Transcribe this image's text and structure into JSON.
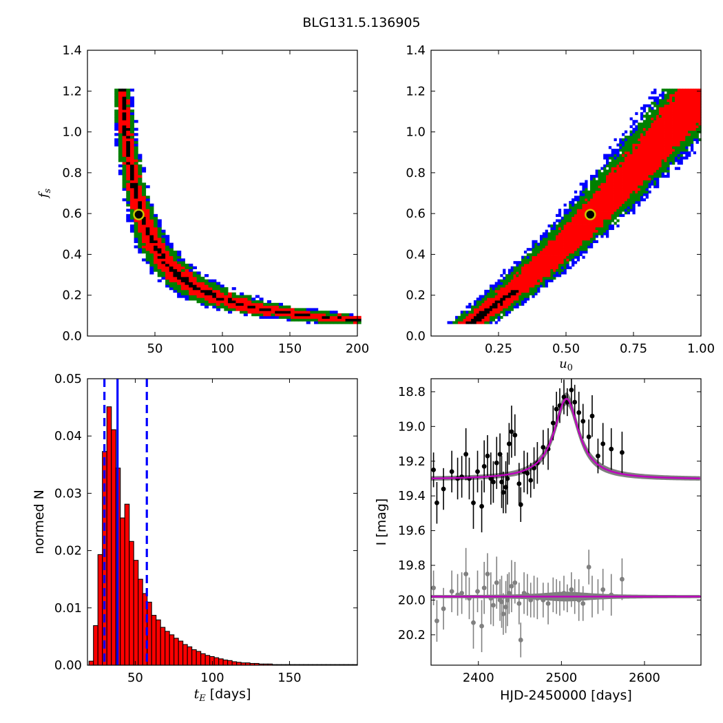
{
  "figure": {
    "title": "BLG131.5.136905"
  },
  "chart_data": [
    {
      "id": "fs_vs_tE",
      "type": "heatmap",
      "xlabel": "",
      "ylabel": "f_s",
      "xlim": [
        0,
        200
      ],
      "ylim": [
        0,
        1.4
      ],
      "xticks": [
        "50",
        "100",
        "150",
        "200"
      ],
      "xtick_values": [
        50,
        100,
        150,
        200
      ],
      "yticks": [
        "0.0",
        "0.2",
        "0.4",
        "0.6",
        "0.8",
        "1.0",
        "1.2",
        "1.4"
      ],
      "ytick_values": [
        0,
        0.2,
        0.4,
        0.6,
        0.8,
        1.0,
        1.2,
        1.4
      ],
      "levels": [
        {
          "name": "outer",
          "color": "#0000ff"
        },
        {
          "name": "mid",
          "color": "#008000"
        },
        {
          "name": "inner",
          "color": "#ff0000"
        },
        {
          "name": "core",
          "color": "#000000"
        }
      ],
      "best_fit": {
        "x": 38,
        "y": 0.595
      },
      "ridge": [
        [
          20,
          1.2
        ],
        [
          25,
          0.95
        ],
        [
          30,
          0.75
        ],
        [
          38,
          0.595
        ],
        [
          45,
          0.45
        ],
        [
          55,
          0.32
        ],
        [
          70,
          0.21
        ],
        [
          90,
          0.135
        ],
        [
          115,
          0.09
        ],
        [
          150,
          0.068
        ],
        [
          195,
          0.062
        ]
      ]
    },
    {
      "id": "fs_vs_u0",
      "type": "heatmap",
      "xlabel": "u_0",
      "ylabel": "",
      "xlim": [
        0,
        1.0
      ],
      "ylim": [
        0,
        1.4
      ],
      "xticks": [
        "0.25",
        "0.50",
        "0.75",
        "1.00"
      ],
      "xtick_values": [
        0.25,
        0.5,
        0.75,
        1.0
      ],
      "yticks": [
        "0.0",
        "0.2",
        "0.4",
        "0.6",
        "0.8",
        "1.0",
        "1.2",
        "1.4"
      ],
      "ytick_values": [
        0,
        0.2,
        0.4,
        0.6,
        0.8,
        1.0,
        1.2,
        1.4
      ],
      "best_fit": {
        "x": 0.59,
        "y": 0.595
      },
      "ridge": [
        [
          0.08,
          0.06
        ],
        [
          0.15,
          0.12
        ],
        [
          0.25,
          0.21
        ],
        [
          0.35,
          0.31
        ],
        [
          0.45,
          0.42
        ],
        [
          0.55,
          0.55
        ],
        [
          0.62,
          0.65
        ],
        [
          0.7,
          0.79
        ],
        [
          0.78,
          0.93
        ],
        [
          0.85,
          1.07
        ],
        [
          0.92,
          1.2
        ]
      ]
    },
    {
      "id": "tE_histogram",
      "type": "bar",
      "xlabel": "t_E [days]",
      "ylabel": "normed N",
      "xlim": [
        19,
        194
      ],
      "ylim": [
        0,
        0.05
      ],
      "xticks": [
        "50",
        "100",
        "150"
      ],
      "xtick_values": [
        50,
        100,
        150
      ],
      "yticks": [
        "0.00",
        "0.01",
        "0.02",
        "0.03",
        "0.04",
        "0.05"
      ],
      "ytick_values": [
        0,
        0.01,
        0.02,
        0.03,
        0.04,
        0.05
      ],
      "bin_width": 2.9,
      "bin_start": 20,
      "values": [
        0.0007,
        0.0069,
        0.0193,
        0.0373,
        0.0451,
        0.0411,
        0.0344,
        0.0257,
        0.0281,
        0.0216,
        0.0183,
        0.015,
        0.0125,
        0.011,
        0.0087,
        0.0079,
        0.0066,
        0.0059,
        0.0053,
        0.0047,
        0.0042,
        0.0036,
        0.0032,
        0.0027,
        0.0024,
        0.002,
        0.0017,
        0.0015,
        0.0013,
        0.0011,
        0.0009,
        0.0008,
        0.0006,
        0.0005,
        0.0004,
        0.0004,
        0.0003,
        0.0003,
        0.0002,
        0.0002,
        0.0002,
        0.0001,
        0.0001,
        0.0001,
        0.0001,
        0.0001,
        0.0001,
        0.0001,
        0.0001,
        0.0001,
        0.0001,
        0.0001,
        0.0001,
        0.0001,
        0.0001,
        0.0001,
        0.0001,
        0.0001,
        0.0001,
        0.0001
      ],
      "bar_color": "#ff0000",
      "vlines": [
        {
          "x": 30.0,
          "style": "dashed",
          "color": "#0000ff"
        },
        {
          "x": 38.5,
          "style": "solid",
          "color": "#0000ff"
        },
        {
          "x": 57.5,
          "style": "dashed",
          "color": "#0000ff"
        }
      ]
    },
    {
      "id": "light_curve",
      "type": "scatter",
      "xlabel": "HJD-2450000 [days]",
      "ylabel": "I [mag]",
      "xlim": [
        2343,
        2668
      ],
      "ylim": [
        20.375,
        18.725
      ],
      "y_inverted": true,
      "xticks": [
        "2400",
        "2500",
        "2600"
      ],
      "xtick_values": [
        2400,
        2500,
        2600
      ],
      "yticks": [
        "18.8",
        "19.0",
        "19.2",
        "19.4",
        "19.6",
        "19.8",
        "20.0",
        "20.2"
      ],
      "ytick_values": [
        18.8,
        19.0,
        19.2,
        19.4,
        19.6,
        19.8,
        20.0,
        20.2
      ],
      "model": {
        "baseline": 19.305,
        "amplitude": 0.465,
        "t0": 2506,
        "width": 18,
        "color": "#bf00bf"
      },
      "residual_offset": 19.98,
      "series": [
        {
          "marker_color": "#000000",
          "x": [
            2346,
            2350,
            2358,
            2368,
            2375,
            2380,
            2385,
            2389,
            2394,
            2399,
            2404,
            2407,
            2411,
            2415,
            2418,
            2422,
            2426,
            2428,
            2430,
            2433,
            2435,
            2437,
            2440,
            2444,
            2449,
            2451,
            2455,
            2459,
            2463,
            2467,
            2471,
            2478,
            2484,
            2490,
            2494,
            2498,
            2503,
            2507,
            2512,
            2516,
            2521,
            2526,
            2533,
            2537,
            2544,
            2550,
            2560,
            2573
          ],
          "y": [
            19.25,
            19.44,
            19.36,
            19.26,
            19.3,
            19.29,
            19.16,
            19.3,
            19.44,
            19.26,
            19.46,
            19.23,
            19.17,
            19.3,
            19.32,
            19.21,
            19.16,
            19.32,
            19.38,
            19.35,
            19.3,
            19.1,
            19.03,
            19.05,
            19.33,
            19.45,
            19.26,
            19.27,
            19.31,
            19.24,
            19.21,
            19.12,
            19.13,
            18.98,
            18.9,
            18.88,
            18.83,
            18.86,
            18.79,
            18.86,
            18.92,
            18.97,
            19.06,
            18.94,
            19.17,
            19.1,
            19.13,
            19.15
          ],
          "err": [
            0.1,
            0.12,
            0.12,
            0.12,
            0.12,
            0.12,
            0.15,
            0.12,
            0.15,
            0.12,
            0.15,
            0.15,
            0.12,
            0.15,
            0.12,
            0.15,
            0.12,
            0.15,
            0.12,
            0.15,
            0.15,
            0.12,
            0.15,
            0.12,
            0.12,
            0.1,
            0.12,
            0.12,
            0.1,
            0.12,
            0.12,
            0.1,
            0.12,
            0.1,
            0.1,
            0.1,
            0.1,
            0.08,
            0.1,
            0.1,
            0.12,
            0.1,
            0.1,
            0.12,
            0.1,
            0.12,
            0.12,
            0.12
          ]
        },
        {
          "marker_color": "#808080",
          "x": [
            2346,
            2350,
            2358,
            2368,
            2375,
            2380,
            2385,
            2389,
            2394,
            2399,
            2404,
            2407,
            2411,
            2415,
            2418,
            2422,
            2426,
            2428,
            2430,
            2433,
            2435,
            2437,
            2440,
            2444,
            2449,
            2451,
            2455,
            2459,
            2463,
            2467,
            2471,
            2478,
            2484,
            2490,
            2494,
            2498,
            2503,
            2507,
            2512,
            2516,
            2521,
            2526,
            2533,
            2537,
            2544,
            2550,
            2560,
            2573
          ],
          "y": [
            19.93,
            20.12,
            20.05,
            19.95,
            19.97,
            19.96,
            19.85,
            19.99,
            20.13,
            19.95,
            20.15,
            19.93,
            19.85,
            19.99,
            20.03,
            19.9,
            20.0,
            20.01,
            20.08,
            20.04,
            20.0,
            19.96,
            19.92,
            19.9,
            20.02,
            20.23,
            19.96,
            19.97,
            20.0,
            19.98,
            19.99,
            20.0,
            20.02,
            19.97,
            19.98,
            19.99,
            19.96,
            19.99,
            19.94,
            19.98,
            20.0,
            20.02,
            19.81,
            19.98,
            19.98,
            19.94,
            19.97,
            19.88
          ],
          "err": [
            0.1,
            0.12,
            0.12,
            0.12,
            0.12,
            0.12,
            0.15,
            0.12,
            0.15,
            0.12,
            0.15,
            0.15,
            0.12,
            0.15,
            0.12,
            0.15,
            0.12,
            0.15,
            0.12,
            0.15,
            0.15,
            0.12,
            0.15,
            0.12,
            0.12,
            0.1,
            0.12,
            0.12,
            0.1,
            0.12,
            0.12,
            0.1,
            0.12,
            0.1,
            0.1,
            0.1,
            0.1,
            0.08,
            0.1,
            0.1,
            0.12,
            0.1,
            0.1,
            0.12,
            0.1,
            0.12,
            0.12,
            0.12
          ]
        }
      ]
    }
  ]
}
